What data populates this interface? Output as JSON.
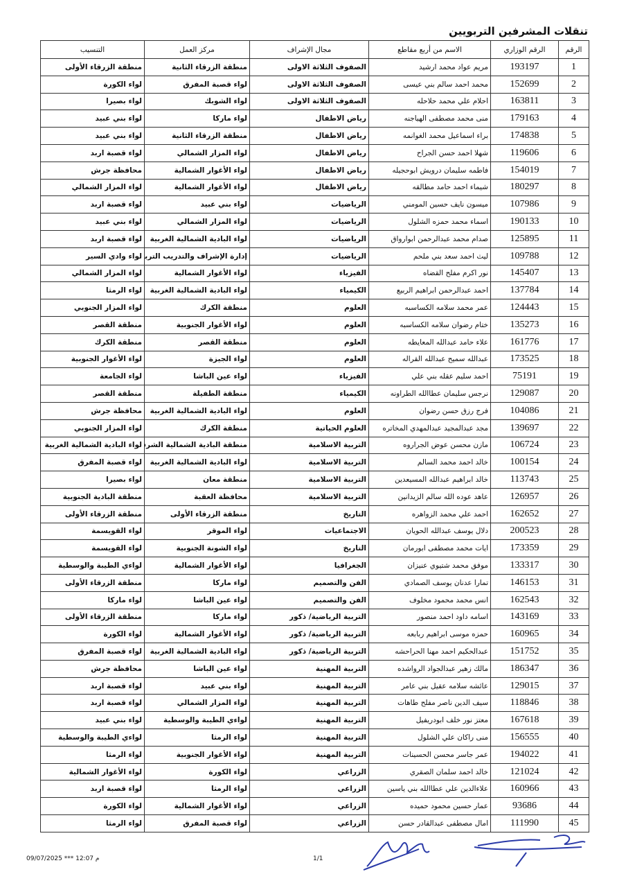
{
  "title": "تنقلات المشرفين التربويين",
  "headers": [
    "الرقم",
    "الرقم الوزاري",
    "الاسم من أربع مقاطع",
    "مجال الإشراف",
    "مركز العمل",
    "التنسيب"
  ],
  "rows": [
    [
      "1",
      "193197",
      "مريم عواد محمد ارشيد",
      "الصفوف الثلاثة الاولى",
      "منطقة الزرقاء الثانية",
      "منطقة الزرقاء الأولى"
    ],
    [
      "2",
      "152699",
      "محمد احمد سالم بني عيسى",
      "الصفوف الثلاثة الاولى",
      "لواء قصبة المفرق",
      "لواء الكورة"
    ],
    [
      "3",
      "163811",
      "احلام علي محمد حلاحله",
      "الصفوف الثلاثة الاولى",
      "لواء الشوبك",
      "لواء بصيرا"
    ],
    [
      "4",
      "179163",
      "منى محمد مصطفى الهياجنه",
      "رياض الاطفال",
      "لواء ماركا",
      "لواء بني عبيد"
    ],
    [
      "5",
      "174838",
      "براء اسماعيل محمد الغوانمه",
      "رياض الاطفال",
      "منطقة الزرقاء الثانية",
      "لواء بني عبيد"
    ],
    [
      "6",
      "119606",
      "شهلا احمد حسن الجراح",
      "رياض الاطفال",
      "لواء المزار الشمالي",
      "لواء قصبة اربد"
    ],
    [
      "7",
      "154019",
      "فاطمه سليمان درويش ابوحجيله",
      "رياض الاطفال",
      "لواء الأغوار الشمالية",
      "محافظة جرش"
    ],
    [
      "8",
      "180297",
      "شيماء احمد حامد مطالقه",
      "رياض الاطفال",
      "لواء الأغوار الشمالية",
      "لواء المزار الشمالي"
    ],
    [
      "9",
      "107986",
      "ميسون نايف حسين المومني",
      "الرياضيات",
      "لواء بني عبيد",
      "لواء قصبة اربد"
    ],
    [
      "10",
      "190133",
      "اسماء محمد حمزه الشلول",
      "الرياضيات",
      "لواء المزار الشمالي",
      "لواء بني عبيد"
    ],
    [
      "11",
      "125895",
      "صدام محمد عبدالرحمن ابوارواق",
      "الرياضيات",
      "لواء البادية الشمالية الغربية",
      "لواء قصبة اربد"
    ],
    [
      "12",
      "109788",
      "ليث احمد سعد بني ملحم",
      "الرياضيات",
      "إدارة الإشراف والتدريب التربوي",
      "لواء وادي السير"
    ],
    [
      "13",
      "145407",
      "نور اكرم مفلح القضاه",
      "الفيزياء",
      "لواء الأغوار الشمالية",
      "لواء المزار الشمالي"
    ],
    [
      "14",
      "137784",
      "احمد عبدالرحمن ابراهيم الربيع",
      "الكيمياء",
      "لواء البادية الشمالية الغربية",
      "لواء الرمثا"
    ],
    [
      "15",
      "124443",
      "عمر محمد سلامه الكساسبه",
      "العلوم",
      "منطقة الكرك",
      "لواء المزار الجنوبي"
    ],
    [
      "16",
      "135273",
      "ختام رضوان سلامه الكساسبه",
      "العلوم",
      "لواء الأغوار الجنوبية",
      "منطقة القصر"
    ],
    [
      "17",
      "161776",
      "علاء حامد عبدالله المعايطه",
      "العلوم",
      "منطقة القصر",
      "منطقة الكرك"
    ],
    [
      "18",
      "173525",
      "عبدالله سميح عبدالله القراله",
      "العلوم",
      "لواء الجيزة",
      "لواء الأغوار الجنوبية"
    ],
    [
      "19",
      "75191",
      "احمد سليم عقله بني علي",
      "الفيزياء",
      "لواء عين الباشا",
      "لواء الجامعة"
    ],
    [
      "20",
      "129087",
      "نرجس سليمان عطاالله الطراونه",
      "الكيمياء",
      "منطقة الطفيلة",
      "منطقة القصر"
    ],
    [
      "21",
      "104086",
      "فرج رزق حسن رضوان",
      "العلوم",
      "لواء البادية الشمالية الغربية",
      "محافظة جرش"
    ],
    [
      "22",
      "139697",
      "مجد عبدالمجيد عبدالمهدي المخاتره",
      "العلوم الحياتية",
      "منطقة الكرك",
      "لواء المزار الجنوبي"
    ],
    [
      "23",
      "106724",
      "مازن محسن عوض الجراروه",
      "التربية الاسلامية",
      "منطقة البادية الشمالية الشرقية",
      "لواء البادية الشمالية الغربية"
    ],
    [
      "24",
      "100154",
      "خالد احمد محمد السالم",
      "التربية الاسلامية",
      "لواء البادية الشمالية الغربية",
      "لواء قصبة المفرق"
    ],
    [
      "25",
      "113743",
      "خالد ابراهيم عبدالله المسيعدين",
      "التربية الاسلامية",
      "منطقة معان",
      "لواء بصيرا"
    ],
    [
      "26",
      "126957",
      "عاهد عوده الله سالم الزيدانين",
      "التربية الاسلامية",
      "محافظة العقبة",
      "منطقة البادية الجنوبية"
    ],
    [
      "27",
      "162652",
      "احمد علي محمد الزواهره",
      "التاريخ",
      "منطقة الزرقاء الأولى",
      "منطقة الزرقاء الأولى"
    ],
    [
      "28",
      "200523",
      "دلال يوسف عبدالله الحويان",
      "الاجتماعيات",
      "لواء الموقر",
      "لواء القويسمة"
    ],
    [
      "29",
      "173359",
      "ايات محمد مصطفى ابورمان",
      "التاريخ",
      "لواء الشونة الجنوبية",
      "لواء القويسمة"
    ],
    [
      "30",
      "133317",
      "موفق محمد شتيوي عنيزان",
      "الجغرافيا",
      "لواء الأغوار الشمالية",
      "لواءي الطيبة والوسطية"
    ],
    [
      "31",
      "146153",
      "تمارا عدنان يوسف الصمادي",
      "الفن والتصميم",
      "لواء ماركا",
      "منطقة الزرقاء الأولى"
    ],
    [
      "32",
      "162543",
      "انس محمد محمود مخلوف",
      "الفن والتصميم",
      "لواء عين الباشا",
      "لواء ماركا"
    ],
    [
      "33",
      "143169",
      "اسامه داود احمد منصور",
      "التربية الرياضية/ ذكور",
      "لواء ماركا",
      "منطقة الزرقاء الأولى"
    ],
    [
      "34",
      "160965",
      "حمزه موسى ابراهيم ربابعه",
      "التربية الرياضية/ ذكور",
      "لواء الأغوار الشمالية",
      "لواء الكورة"
    ],
    [
      "35",
      "151752",
      "عبدالحكيم احمد مهنا الحراحشه",
      "التربية الرياضية/ ذكور",
      "لواء البادية الشمالية الغربية",
      "لواء قصبة المفرق"
    ],
    [
      "36",
      "186347",
      "مالك زهير عبدالجواد الرواشده",
      "التربية المهنية",
      "لواء عين الباشا",
      "محافظة جرش"
    ],
    [
      "37",
      "129015",
      "عائشه سلامه عقيل بني عامر",
      "التربية المهنية",
      "لواء بني عبيد",
      "لواء قصبة اربد"
    ],
    [
      "38",
      "118846",
      "سيف الدين ناصر مفلح طاهات",
      "التربية المهنية",
      "لواء المزار الشمالي",
      "لواء قصبة اربد"
    ],
    [
      "39",
      "167618",
      "معتز نور خلف ابودريفيل",
      "التربية المهنية",
      "لواءي الطيبة والوسطية",
      "لواء بني عبيد"
    ],
    [
      "40",
      "156555",
      "منى راكان علي الشلول",
      "التربية المهنية",
      "لواء الرمثا",
      "لواءي الطيبة والوسطية"
    ],
    [
      "41",
      "194022",
      "عمر جاسر محسن الحسينات",
      "التربية المهنية",
      "لواء الأغوار الجنوبية",
      "لواء الرمثا"
    ],
    [
      "42",
      "121024",
      "خالد احمد سلمان الصقري",
      "الزراعي",
      "لواء الكورة",
      "لواء الأغوار الشمالية"
    ],
    [
      "43",
      "160966",
      "علاءالدين علي عطاالله بني ياسين",
      "الزراعي",
      "لواء الرمثا",
      "لواء قصبة اربد"
    ],
    [
      "44",
      "93686",
      "عمار حسين محمود حميده",
      "الزراعي",
      "لواء الأغوار الشمالية",
      "لواء الكورة"
    ],
    [
      "45",
      "111990",
      "امال مصطفى عبدالقادر حسن",
      "الزراعي",
      "لواء قصبة المفرق",
      "لواء الرمثا"
    ]
  ],
  "footer": {
    "datetime": "09/07/2025 *** 12:07 م",
    "page": "1/1"
  },
  "signature_color": "#2a3aa8"
}
